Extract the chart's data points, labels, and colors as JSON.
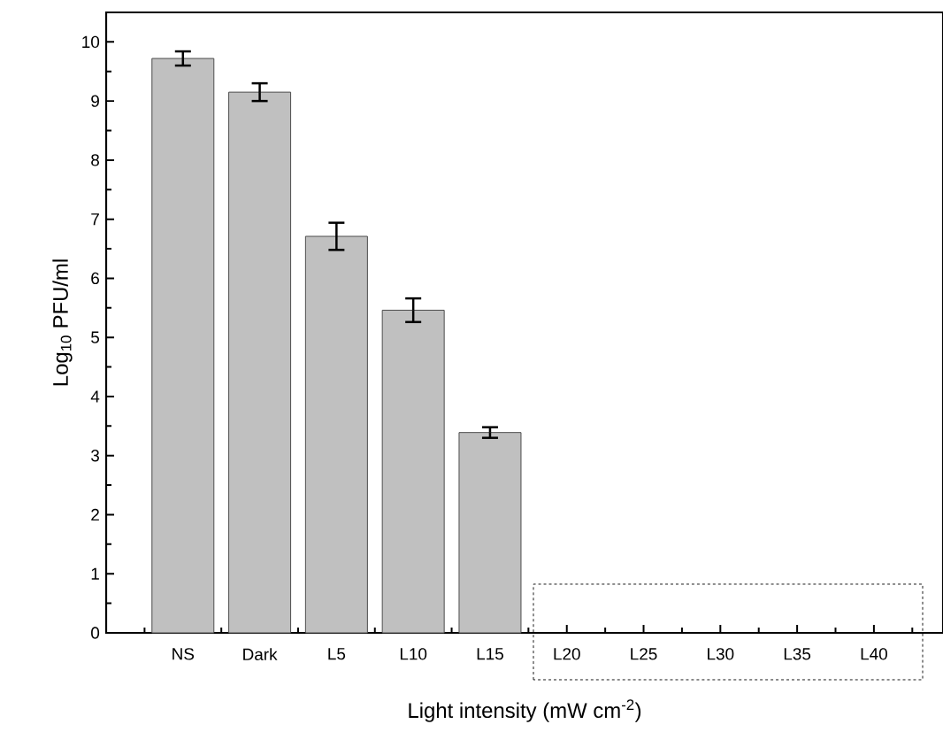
{
  "chart_data": {
    "type": "bar",
    "xlabel": "Light intensity (mW cm$^{-2}$)",
    "ylabel": "Log$_{10}$ PFU/ml",
    "categories": [
      "NS",
      "Dark",
      "L5",
      "L10",
      "L15",
      "L20",
      "L25",
      "L30",
      "L35",
      "L40"
    ],
    "values": [
      9.72,
      9.15,
      6.71,
      5.46,
      3.39,
      null,
      null,
      null,
      null,
      null
    ],
    "errors": [
      0.12,
      0.15,
      0.23,
      0.2,
      0.09,
      null,
      null,
      null,
      null,
      null
    ],
    "color": "#c0c0c0",
    "ylim": [
      0,
      10.5
    ],
    "yticks": [
      0,
      1,
      2,
      3,
      4,
      5,
      6,
      7,
      8,
      9,
      10
    ],
    "grid": false
  }
}
